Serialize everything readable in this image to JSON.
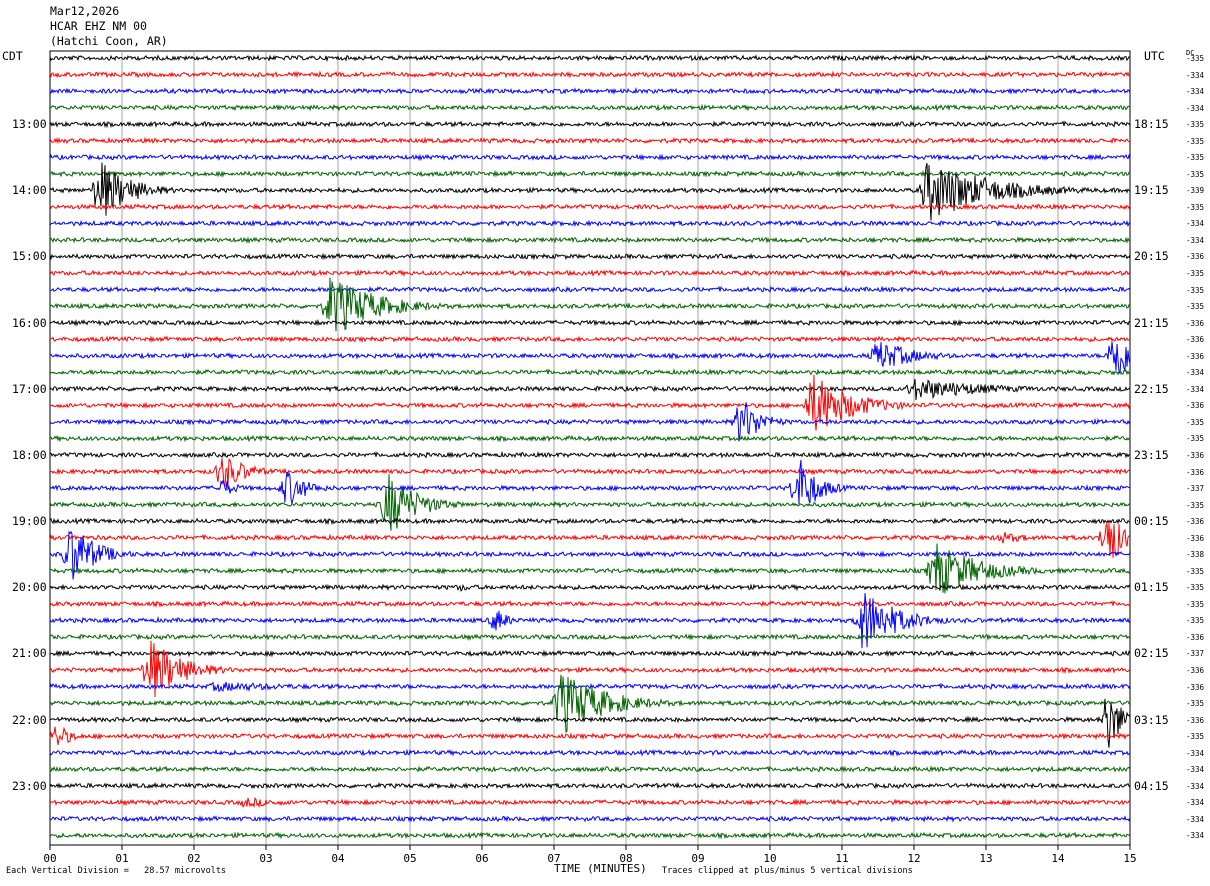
{
  "header": {
    "date": "Mar12,2026",
    "station": "HCAR EHZ NM 00",
    "location": "(Hatchi Coon, AR)"
  },
  "left_tz": "CDT",
  "right_tz": "UTC",
  "dc_label": "DC",
  "footer": {
    "scale": "Each Vertical Division =   28.57 microvolts",
    "xlabel": "TIME (MINUTES)",
    "clip": "Traces clipped at plus/minus 5 vertical divisions"
  },
  "colors": {
    "trace_cycle": [
      "#000000",
      "#ff0000",
      "#0000ff",
      "#006400"
    ],
    "grid": "#808080",
    "background": "#ffffff"
  },
  "chart_data": {
    "type": "line",
    "title": "HCAR EHZ NM 00 helicorder",
    "xlabel": "TIME (MINUTES)",
    "x_ticks": [
      "00",
      "01",
      "02",
      "03",
      "04",
      "05",
      "06",
      "07",
      "08",
      "09",
      "10",
      "11",
      "12",
      "13",
      "14",
      "15"
    ],
    "xlim": [
      0,
      15
    ],
    "grid": true,
    "minutes_per_line": 15,
    "num_lines": 48,
    "left_time_labels": [
      {
        "line": 4,
        "text": "13:00"
      },
      {
        "line": 8,
        "text": "14:00"
      },
      {
        "line": 12,
        "text": "15:00"
      },
      {
        "line": 16,
        "text": "16:00"
      },
      {
        "line": 20,
        "text": "17:00"
      },
      {
        "line": 24,
        "text": "18:00"
      },
      {
        "line": 28,
        "text": "19:00"
      },
      {
        "line": 32,
        "text": "20:00"
      },
      {
        "line": 36,
        "text": "21:00"
      },
      {
        "line": 40,
        "text": "22:00"
      },
      {
        "line": 44,
        "text": "23:00"
      }
    ],
    "right_time_labels": [
      {
        "line": 4,
        "text": "18:15"
      },
      {
        "line": 8,
        "text": "19:15"
      },
      {
        "line": 12,
        "text": "20:15"
      },
      {
        "line": 16,
        "text": "21:15"
      },
      {
        "line": 20,
        "text": "22:15"
      },
      {
        "line": 24,
        "text": "23:15"
      },
      {
        "line": 28,
        "text": "00:15"
      },
      {
        "line": 32,
        "text": "01:15"
      },
      {
        "line": 36,
        "text": "02:15"
      },
      {
        "line": 40,
        "text": "03:15"
      },
      {
        "line": 44,
        "text": "04:15"
      }
    ],
    "dc_offsets": [
      "-335",
      "-334",
      "-334",
      "-334",
      "-335",
      "-335",
      "-335",
      "-335",
      "-339",
      "-335",
      "-334",
      "-334",
      "-336",
      "-335",
      "-335",
      "-335",
      "-336",
      "-336",
      "-336",
      "-334",
      "-334",
      "-336",
      "-335",
      "-335",
      "-336",
      "-336",
      "-337",
      "-335",
      "-336",
      "-336",
      "-338",
      "-335",
      "-335",
      "-335",
      "-335",
      "-336",
      "-337",
      "-336",
      "-336",
      "-335",
      "-336",
      "-335",
      "-334",
      "-334",
      "-334",
      "-334",
      "-334",
      "-334"
    ],
    "events": [
      {
        "line": 8,
        "minute": 0.7,
        "amplitude": 5.0,
        "duration_min": 1.2
      },
      {
        "line": 8,
        "minute": 12.2,
        "amplitude": 5.0,
        "duration_min": 2.5
      },
      {
        "line": 15,
        "minute": 3.9,
        "amplitude": 5.0,
        "duration_min": 1.8
      },
      {
        "line": 18,
        "minute": 11.5,
        "amplitude": 2.5,
        "duration_min": 1.5
      },
      {
        "line": 18,
        "minute": 14.8,
        "amplitude": 5.0,
        "duration_min": 0.6
      },
      {
        "line": 20,
        "minute": 12.0,
        "amplitude": 1.8,
        "duration_min": 3.0
      },
      {
        "line": 21,
        "minute": 10.6,
        "amplitude": 5.0,
        "duration_min": 1.6
      },
      {
        "line": 22,
        "minute": 9.6,
        "amplitude": 4.0,
        "duration_min": 0.8
      },
      {
        "line": 25,
        "minute": 2.4,
        "amplitude": 3.0,
        "duration_min": 1.0
      },
      {
        "line": 26,
        "minute": 2.4,
        "amplitude": 1.5,
        "duration_min": 0.6
      },
      {
        "line": 26,
        "minute": 3.3,
        "amplitude": 3.0,
        "duration_min": 0.8
      },
      {
        "line": 26,
        "minute": 10.4,
        "amplitude": 5.0,
        "duration_min": 0.8
      },
      {
        "line": 27,
        "minute": 4.7,
        "amplitude": 5.0,
        "duration_min": 1.2
      },
      {
        "line": 29,
        "minute": 13.2,
        "amplitude": 1.0,
        "duration_min": 1.2
      },
      {
        "line": 29,
        "minute": 14.7,
        "amplitude": 5.0,
        "duration_min": 0.6
      },
      {
        "line": 30,
        "minute": 0.3,
        "amplitude": 5.0,
        "duration_min": 1.0
      },
      {
        "line": 31,
        "minute": 12.3,
        "amplitude": 4.5,
        "duration_min": 1.8
      },
      {
        "line": 32,
        "minute": 5.7,
        "amplitude": 0.6,
        "duration_min": 1.2
      },
      {
        "line": 34,
        "minute": 6.2,
        "amplitude": 2.0,
        "duration_min": 0.5
      },
      {
        "line": 34,
        "minute": 11.3,
        "amplitude": 5.0,
        "duration_min": 1.4
      },
      {
        "line": 37,
        "minute": 1.4,
        "amplitude": 5.0,
        "duration_min": 1.3
      },
      {
        "line": 38,
        "minute": 2.3,
        "amplitude": 0.8,
        "duration_min": 4.0
      },
      {
        "line": 39,
        "minute": 7.1,
        "amplitude": 5.0,
        "duration_min": 1.8
      },
      {
        "line": 40,
        "minute": 14.7,
        "amplitude": 5.0,
        "duration_min": 0.6
      },
      {
        "line": 41,
        "minute": 0.1,
        "amplitude": 2.0,
        "duration_min": 0.6
      },
      {
        "line": 45,
        "minute": 2.7,
        "amplitude": 0.8,
        "duration_min": 2.0
      }
    ]
  }
}
